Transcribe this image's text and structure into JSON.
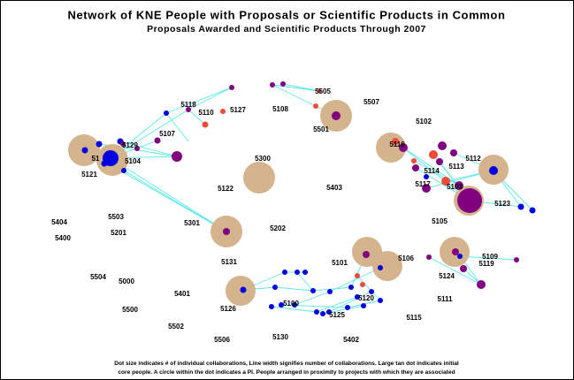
{
  "header": {
    "title": "Network of KNE People with Proposals or Scientific Products in Common",
    "subtitle": "Proposals Awarded and Scientific Products Through 2007"
  },
  "nodes": [
    "5118",
    "5110",
    "5127",
    "5108",
    "5505",
    "5507",
    "5501",
    "5102",
    "5129",
    "5107",
    "51",
    "5104",
    "5121",
    "5300",
    "5122",
    "5403",
    "5116",
    "5112",
    "5114",
    "5113",
    "5117",
    "5103",
    "5123",
    "5105",
    "5404",
    "5503",
    "5400",
    "5201",
    "5301",
    "5202",
    "5131",
    "5101",
    "5106",
    "5109",
    "5119",
    "5124",
    "5504",
    "5000",
    "5401",
    "5126",
    "5100",
    "5120",
    "5125",
    "5111",
    "5115",
    "5500",
    "5502",
    "5506",
    "5130",
    "5402"
  ],
  "footer": [
    "Dot size indicates # of individual collaborations, Line width signifies number of collaborations. Large tan dot indicates initial",
    "core people. A circle within the dot indicates a PI. People arranged in proximity to projects with which they are associated"
  ]
}
